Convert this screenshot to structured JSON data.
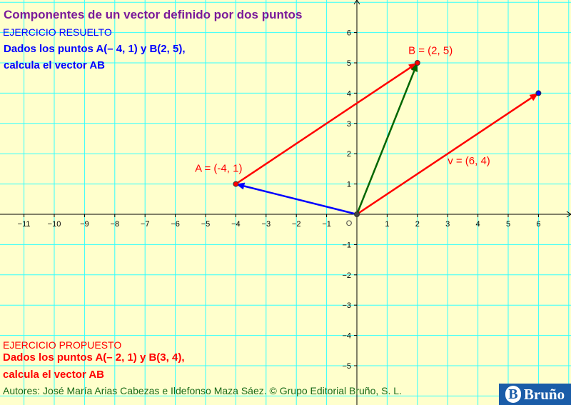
{
  "title": "Componentes de un vector definido por dos puntos",
  "solved": {
    "heading": "EJERCICIO RESUELTO",
    "line1": "Dados los puntos A(– 4, 1) y B(2, 5),",
    "line2": "calcula el vector AB"
  },
  "proposed": {
    "heading": "EJERCICIO PROPUESTO",
    "line1": "Dados los puntos A(– 2, 1) y B(3, 4),",
    "line2": "calcula el vector AB"
  },
  "authors": "Autores: José María Arias Cabezas e Ildefonso Maza Sáez. © Grupo Editorial Bruño, S. L.",
  "logo_text": "Bruño",
  "axes": {
    "x_ticks": [
      -11,
      -10,
      -9,
      -8,
      -7,
      -6,
      -5,
      -4,
      -3,
      -2,
      -1,
      1,
      2,
      3,
      4,
      5,
      6
    ],
    "y_ticks": [
      -5,
      -4,
      -3,
      -2,
      -1,
      1,
      2,
      3,
      4,
      5,
      6
    ],
    "origin_label": "O",
    "grid": true
  },
  "points": [
    {
      "name": "A",
      "x": -4,
      "y": 1,
      "label": "A = (-4, 1)",
      "color": "#ff0000"
    },
    {
      "name": "B",
      "x": 2,
      "y": 5,
      "label": "B = (2, 5)",
      "color": "#ff0000"
    },
    {
      "name": "O",
      "x": 0,
      "y": 0,
      "label": "",
      "color": "#444444"
    },
    {
      "name": "V",
      "x": 6,
      "y": 4,
      "label": "",
      "color": "#0000ff"
    }
  ],
  "vectors": [
    {
      "name": "AB",
      "from": [
        -4,
        1
      ],
      "to": [
        2,
        5
      ],
      "color": "#ff0000",
      "label": ""
    },
    {
      "name": "v",
      "from": [
        0,
        0
      ],
      "to": [
        6,
        4
      ],
      "color": "#ff0000",
      "label": "v = (6, 4)"
    },
    {
      "name": "OB",
      "from": [
        0,
        0
      ],
      "to": [
        2,
        5
      ],
      "color": "#006600",
      "label": ""
    },
    {
      "name": "OA",
      "from": [
        0,
        0
      ],
      "to": [
        -4,
        1
      ],
      "color": "#0000ff",
      "label": ""
    }
  ],
  "colors": {
    "background": "#ffffcc",
    "grid": "#33ffff",
    "axes": "#000000"
  }
}
